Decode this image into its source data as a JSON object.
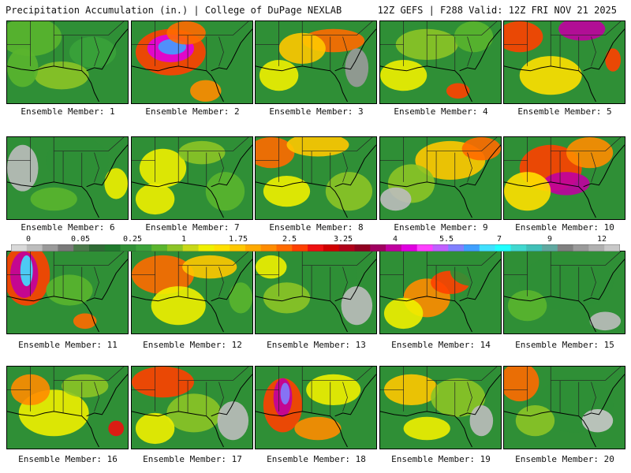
{
  "header": {
    "title_left": "Precipitation Accumulation (in.) | College of DuPage NEXLAB",
    "title_right": "12Z GEFS | F288 Valid: 12Z FRI NOV 21 2025"
  },
  "panels": [
    {
      "label": "Ensemble Member: 1"
    },
    {
      "label": "Ensemble Member: 2"
    },
    {
      "label": "Ensemble Member: 3"
    },
    {
      "label": "Ensemble Member: 4"
    },
    {
      "label": "Ensemble Member: 5"
    },
    {
      "label": "Ensemble Member: 6"
    },
    {
      "label": "Ensemble Member: 7"
    },
    {
      "label": "Ensemble Member: 8"
    },
    {
      "label": "Ensemble Member: 9"
    },
    {
      "label": "Ensemble Member: 10"
    },
    {
      "label": "Ensemble Member: 11"
    },
    {
      "label": "Ensemble Member: 12"
    },
    {
      "label": "Ensemble Member: 13"
    },
    {
      "label": "Ensemble Member: 14"
    },
    {
      "label": "Ensemble Member: 15"
    },
    {
      "label": "Ensemble Member: 16"
    },
    {
      "label": "Ensemble Member: 17"
    },
    {
      "label": "Ensemble Member: 18"
    },
    {
      "label": "Ensemble Member: 19"
    },
    {
      "label": "Ensemble Member: 20"
    }
  ],
  "legend": {
    "labels": [
      "0",
      "0.05",
      "0.25",
      "1",
      "1.75",
      "2.5",
      "3.25",
      "4",
      "5.5",
      "7",
      "9",
      "12"
    ],
    "colors": [
      "#d9d9d9",
      "#bdbdbd",
      "#9a9a9a",
      "#7a7a7a",
      "#4a7a4a",
      "#2e6b34",
      "#1f7a2c",
      "#2f8f36",
      "#3aa23a",
      "#5ab52e",
      "#8cc426",
      "#c8d818",
      "#f0f000",
      "#ffe000",
      "#ffc800",
      "#ffaa00",
      "#ff8c00",
      "#ff6a00",
      "#ff4000",
      "#ee1010",
      "#d00000",
      "#b00018",
      "#900020",
      "#a00060",
      "#c000a0",
      "#e000e0",
      "#ff40ff",
      "#c060ff",
      "#8080ff",
      "#40a0ff",
      "#40e0ff",
      "#20ffff",
      "#40d8d0",
      "#40c0b8",
      "#60a8a0",
      "#808080",
      "#9a9a9a",
      "#b0b0b0",
      "#c8c8c8"
    ]
  }
}
